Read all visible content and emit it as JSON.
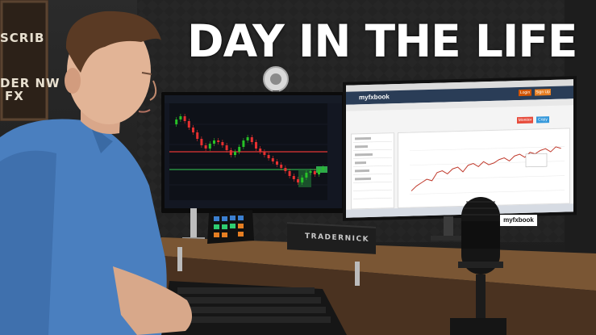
{
  "overlay": {
    "title": "DAY IN THE LIFE"
  },
  "letterboard": {
    "lines": [
      "SCRIB",
      "DER NW",
      "FX"
    ]
  },
  "left_monitor": {
    "chart_data": {
      "type": "candlestick",
      "colors": {
        "up": "#27c227",
        "down": "#e53030",
        "resistance": "#c03030",
        "support": "#2ea84a",
        "background": "#0e1118"
      }
    }
  },
  "right_monitor": {
    "site_logo": "myfxbook",
    "header_buttons": [
      "Login",
      "Sign Up"
    ],
    "action_buttons": [
      "Monitor",
      "Copy"
    ],
    "chart_data": {
      "type": "line",
      "colors": {
        "line": "#c0392b"
      }
    }
  },
  "speaker_sticker": "myfxbook",
  "soundbar": {
    "brand": "TRADERNICK"
  },
  "colors": {
    "shirt": "#4a7fbf",
    "desk": "#6b4a2c",
    "wall": "#252525"
  }
}
